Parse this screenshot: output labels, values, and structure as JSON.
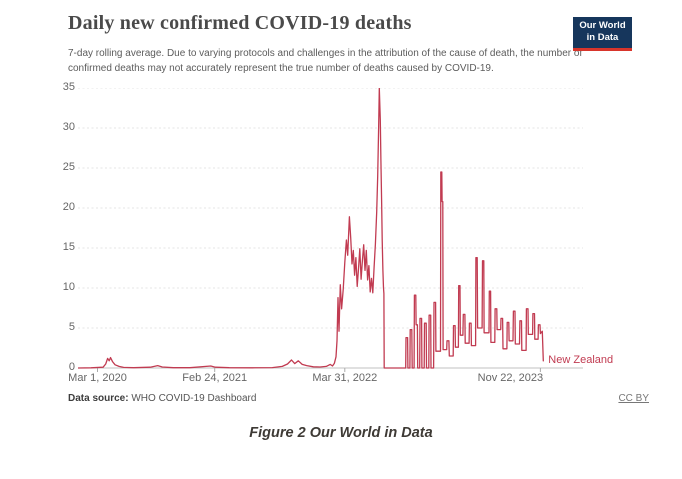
{
  "figure": {
    "caption": "Figure 2 Our World in Data"
  },
  "chart": {
    "title": "Daily new confirmed COVID-19 deaths",
    "subtitle": "7-day rolling average. Due to varying protocols and challenges in the attribution of the cause of death, the number of confirmed deaths may not accurately represent the true number of deaths caused by COVID-19.",
    "logo": {
      "line1": "Our World",
      "line2": "in Data",
      "bg": "#16365c",
      "accent": "#d8352b"
    },
    "footer": {
      "source_label": "Data source:",
      "source_value": "WHO COVID-19 Dashboard",
      "license": "CC BY"
    }
  },
  "chart_data": {
    "type": "line",
    "title": "Daily new confirmed COVID-19 deaths",
    "series_label": "New Zealand",
    "line_color": "#c13b51",
    "axis_text_color": "#666666",
    "grid": "horizontal-dashed",
    "legend_position": "end-of-line",
    "x_domain": [
      "2020-01-01",
      "2024-04-01"
    ],
    "ylim": [
      0,
      35
    ],
    "y_ticks": [
      0,
      5,
      10,
      15,
      20,
      25,
      30,
      35
    ],
    "x_ticks": [
      {
        "label": "Mar 1, 2020",
        "date": "2020-03-01"
      },
      {
        "label": "Feb 24, 2021",
        "date": "2021-02-24"
      },
      {
        "label": "Mar 31, 2022",
        "date": "2022-03-31"
      },
      {
        "label": "Nov 22, 2023",
        "date": "2023-11-22"
      }
    ],
    "points": [
      [
        "2020-01-01",
        0
      ],
      [
        "2020-02-10",
        0.03
      ],
      [
        "2020-03-18",
        0.1
      ],
      [
        "2020-03-26",
        0.5
      ],
      [
        "2020-04-01",
        1.2
      ],
      [
        "2020-04-06",
        0.9
      ],
      [
        "2020-04-10",
        1.3
      ],
      [
        "2020-04-16",
        0.8
      ],
      [
        "2020-04-24",
        0.4
      ],
      [
        "2020-05-06",
        0.2
      ],
      [
        "2020-05-20",
        0.08
      ],
      [
        "2020-06-20",
        0.04
      ],
      [
        "2020-08-10",
        0.1
      ],
      [
        "2020-09-02",
        0.3
      ],
      [
        "2020-09-16",
        0.12
      ],
      [
        "2020-10-20",
        0.04
      ],
      [
        "2020-12-10",
        0.04
      ],
      [
        "2021-02-12",
        0.25
      ],
      [
        "2021-02-26",
        0.1
      ],
      [
        "2021-04-10",
        0.04
      ],
      [
        "2021-06-20",
        0.03
      ],
      [
        "2021-08-20",
        0.05
      ],
      [
        "2021-09-20",
        0.2
      ],
      [
        "2021-10-06",
        0.5
      ],
      [
        "2021-10-18",
        1.0
      ],
      [
        "2021-10-28",
        0.55
      ],
      [
        "2021-11-08",
        0.9
      ],
      [
        "2021-11-20",
        0.45
      ],
      [
        "2021-12-04",
        0.3
      ],
      [
        "2021-12-24",
        0.15
      ],
      [
        "2022-01-14",
        0.12
      ],
      [
        "2022-02-02",
        0.2
      ],
      [
        "2022-02-14",
        0.45
      ],
      [
        "2022-02-21",
        0.25
      ],
      [
        "2022-02-27",
        0.6
      ],
      [
        "2022-03-04",
        1.4
      ],
      [
        "2022-03-07",
        3.4
      ],
      [
        "2022-03-10",
        8.8
      ],
      [
        "2022-03-13",
        4.6
      ],
      [
        "2022-03-17",
        10.4
      ],
      [
        "2022-03-21",
        7.4
      ],
      [
        "2022-03-26",
        9.8
      ],
      [
        "2022-03-31",
        13.2
      ],
      [
        "2022-04-05",
        16.0
      ],
      [
        "2022-04-09",
        14.1
      ],
      [
        "2022-04-14",
        18.9
      ],
      [
        "2022-04-18",
        16.3
      ],
      [
        "2022-04-22",
        13.0
      ],
      [
        "2022-04-26",
        14.7
      ],
      [
        "2022-04-30",
        11.6
      ],
      [
        "2022-05-04",
        13.8
      ],
      [
        "2022-05-08",
        10.2
      ],
      [
        "2022-05-12",
        12.4
      ],
      [
        "2022-05-16",
        14.9
      ],
      [
        "2022-05-20",
        11.1
      ],
      [
        "2022-05-24",
        13.4
      ],
      [
        "2022-05-28",
        15.4
      ],
      [
        "2022-06-01",
        12.2
      ],
      [
        "2022-06-05",
        14.7
      ],
      [
        "2022-06-09",
        11.0
      ],
      [
        "2022-06-13",
        12.8
      ],
      [
        "2022-06-17",
        9.5
      ],
      [
        "2022-06-21",
        11.2
      ],
      [
        "2022-06-25",
        9.4
      ],
      [
        "2022-06-29",
        12.6
      ],
      [
        "2022-07-03",
        15.5
      ],
      [
        "2022-07-07",
        19.5
      ],
      [
        "2022-07-10",
        24.0
      ],
      [
        "2022-07-13",
        30.5
      ],
      [
        "2022-07-15",
        35.0
      ],
      [
        "2022-07-18",
        31.0
      ],
      [
        "2022-07-20",
        26.0
      ],
      [
        "2022-07-22",
        21.0
      ],
      [
        "2022-07-24",
        16.0
      ],
      [
        "2022-07-26",
        12.2
      ],
      [
        "2022-07-28",
        10.0
      ],
      [
        "2022-07-29",
        9.3
      ],
      [
        "2022-07-30",
        0
      ],
      [
        "2022-10-04",
        0
      ],
      [
        "2022-10-05",
        3.8
      ],
      [
        "2022-10-10",
        3.8
      ],
      [
        "2022-10-11",
        0
      ],
      [
        "2022-10-17",
        0
      ],
      [
        "2022-10-18",
        4.8
      ],
      [
        "2022-10-23",
        4.8
      ],
      [
        "2022-10-24",
        0
      ],
      [
        "2022-10-30",
        0
      ],
      [
        "2022-10-31",
        9.1
      ],
      [
        "2022-11-04",
        9.1
      ],
      [
        "2022-11-05",
        5.4
      ],
      [
        "2022-11-09",
        5.4
      ],
      [
        "2022-11-10",
        0
      ],
      [
        "2022-11-16",
        0
      ],
      [
        "2022-11-17",
        6.2
      ],
      [
        "2022-11-22",
        6.2
      ],
      [
        "2022-11-23",
        0
      ],
      [
        "2022-11-30",
        0
      ],
      [
        "2022-12-01",
        5.6
      ],
      [
        "2022-12-06",
        5.6
      ],
      [
        "2022-12-07",
        0
      ],
      [
        "2022-12-14",
        0
      ],
      [
        "2022-12-15",
        6.6
      ],
      [
        "2022-12-20",
        6.6
      ],
      [
        "2022-12-21",
        0
      ],
      [
        "2022-12-29",
        0
      ],
      [
        "2022-12-30",
        8.2
      ],
      [
        "2023-01-04",
        8.2
      ],
      [
        "2023-01-05",
        2.1
      ],
      [
        "2023-01-19",
        2.1
      ],
      [
        "2023-01-20",
        24.5
      ],
      [
        "2023-01-23",
        24.5
      ],
      [
        "2023-01-24",
        20.8
      ],
      [
        "2023-01-26",
        20.8
      ],
      [
        "2023-01-27",
        2.3
      ],
      [
        "2023-02-07",
        2.3
      ],
      [
        "2023-02-08",
        3.4
      ],
      [
        "2023-02-14",
        3.4
      ],
      [
        "2023-02-15",
        1.5
      ],
      [
        "2023-02-27",
        1.5
      ],
      [
        "2023-02-28",
        5.3
      ],
      [
        "2023-03-05",
        5.3
      ],
      [
        "2023-03-06",
        2.6
      ],
      [
        "2023-03-15",
        2.6
      ],
      [
        "2023-03-16",
        10.3
      ],
      [
        "2023-03-20",
        10.3
      ],
      [
        "2023-03-21",
        4.1
      ],
      [
        "2023-03-29",
        4.1
      ],
      [
        "2023-03-30",
        6.7
      ],
      [
        "2023-04-04",
        6.7
      ],
      [
        "2023-04-05",
        3.1
      ],
      [
        "2023-04-17",
        3.1
      ],
      [
        "2023-04-18",
        5.6
      ],
      [
        "2023-04-23",
        5.6
      ],
      [
        "2023-04-24",
        2.8
      ],
      [
        "2023-05-07",
        2.8
      ],
      [
        "2023-05-08",
        13.8
      ],
      [
        "2023-05-12",
        13.8
      ],
      [
        "2023-05-13",
        5.0
      ],
      [
        "2023-05-27",
        5.0
      ],
      [
        "2023-05-28",
        13.4
      ],
      [
        "2023-06-01",
        13.4
      ],
      [
        "2023-06-02",
        4.4
      ],
      [
        "2023-06-17",
        4.4
      ],
      [
        "2023-06-18",
        9.6
      ],
      [
        "2023-06-22",
        9.6
      ],
      [
        "2023-06-23",
        3.2
      ],
      [
        "2023-07-05",
        3.2
      ],
      [
        "2023-07-06",
        7.4
      ],
      [
        "2023-07-11",
        7.4
      ],
      [
        "2023-07-12",
        4.8
      ],
      [
        "2023-07-23",
        4.8
      ],
      [
        "2023-07-24",
        6.2
      ],
      [
        "2023-07-29",
        6.2
      ],
      [
        "2023-07-30",
        2.4
      ],
      [
        "2023-08-11",
        2.4
      ],
      [
        "2023-08-12",
        5.7
      ],
      [
        "2023-08-17",
        5.7
      ],
      [
        "2023-08-18",
        3.4
      ],
      [
        "2023-08-30",
        3.4
      ],
      [
        "2023-08-31",
        7.1
      ],
      [
        "2023-09-05",
        7.1
      ],
      [
        "2023-09-06",
        3.0
      ],
      [
        "2023-09-19",
        3.0
      ],
      [
        "2023-09-20",
        5.9
      ],
      [
        "2023-09-25",
        5.9
      ],
      [
        "2023-09-26",
        2.2
      ],
      [
        "2023-10-09",
        2.2
      ],
      [
        "2023-10-10",
        7.4
      ],
      [
        "2023-10-15",
        7.4
      ],
      [
        "2023-10-16",
        4.2
      ],
      [
        "2023-10-29",
        4.2
      ],
      [
        "2023-10-30",
        6.8
      ],
      [
        "2023-11-04",
        6.8
      ],
      [
        "2023-11-05",
        3.6
      ],
      [
        "2023-11-15",
        3.6
      ],
      [
        "2023-11-16",
        5.4
      ],
      [
        "2023-11-21",
        5.4
      ],
      [
        "2023-11-22",
        4.3
      ],
      [
        "2023-11-28",
        4.6
      ],
      [
        "2023-12-01",
        0.9
      ]
    ]
  }
}
